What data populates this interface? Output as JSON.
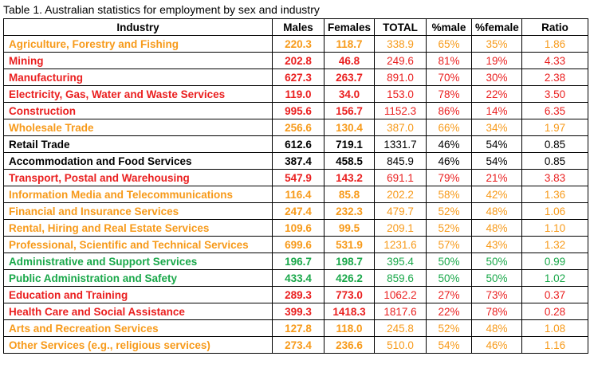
{
  "caption": "Table 1. Australian statistics for employment by sex and industry",
  "headers": {
    "industry": "Industry",
    "males": "Males",
    "females": "Females",
    "total": "TOTAL",
    "pct_male": "%male",
    "pct_female": "%female",
    "ratio": "Ratio"
  },
  "colors": {
    "orange": "#f79a1a",
    "red": "#ea1f1f",
    "black": "#000000",
    "green": "#1aa84a"
  },
  "rows": [
    {
      "industry": "Agriculture, Forestry and Fishing",
      "males": "220.3",
      "females": "118.7",
      "total": "338.9",
      "pct_male": "65%",
      "pct_female": "35%",
      "ratio": "1.86",
      "color": "orange"
    },
    {
      "industry": "Mining",
      "males": "202.8",
      "females": "46.8",
      "total": "249.6",
      "pct_male": "81%",
      "pct_female": "19%",
      "ratio": "4.33",
      "color": "red"
    },
    {
      "industry": "Manufacturing",
      "males": "627.3",
      "females": "263.7",
      "total": "891.0",
      "pct_male": "70%",
      "pct_female": "30%",
      "ratio": "2.38",
      "color": "red"
    },
    {
      "industry": "Electricity, Gas, Water and Waste Services",
      "males": "119.0",
      "females": "34.0",
      "total": "153.0",
      "pct_male": "78%",
      "pct_female": "22%",
      "ratio": "3.50",
      "color": "red"
    },
    {
      "industry": "Construction",
      "males": "995.6",
      "females": "156.7",
      "total": "1152.3",
      "pct_male": "86%",
      "pct_female": "14%",
      "ratio": "6.35",
      "color": "red"
    },
    {
      "industry": "Wholesale Trade",
      "males": "256.6",
      "females": "130.4",
      "total": "387.0",
      "pct_male": "66%",
      "pct_female": "34%",
      "ratio": "1.97",
      "color": "orange"
    },
    {
      "industry": "Retail Trade",
      "males": "612.6",
      "females": "719.1",
      "total": "1331.7",
      "pct_male": "46%",
      "pct_female": "54%",
      "ratio": "0.85",
      "color": "black"
    },
    {
      "industry": " Accommodation and Food Services",
      "males": "387.4",
      "females": "458.5",
      "total": "845.9",
      "pct_male": "46%",
      "pct_female": "54%",
      "ratio": "0.85",
      "color": "black"
    },
    {
      "industry": "Transport, Postal and Warehousing",
      "males": "547.9",
      "females": "143.2",
      "total": "691.1",
      "pct_male": "79%",
      "pct_female": "21%",
      "ratio": "3.83",
      "color": "red"
    },
    {
      "industry": "Information Media and Telecommunications",
      "males": "116.4",
      "females": "85.8",
      "total": "202.2",
      "pct_male": "58%",
      "pct_female": "42%",
      "ratio": "1.36",
      "color": "orange"
    },
    {
      "industry": "Financial and Insurance Services",
      "males": "247.4",
      "females": "232.3",
      "total": "479.7",
      "pct_male": "52%",
      "pct_female": "48%",
      "ratio": "1.06",
      "color": "orange"
    },
    {
      "industry": "Rental, Hiring and Real Estate Services",
      "males": "109.6",
      "females": "99.5",
      "total": "209.1",
      "pct_male": "52%",
      "pct_female": "48%",
      "ratio": "1.10",
      "color": "orange"
    },
    {
      "industry": "Professional, Scientific and Technical Services",
      "males": "699.6",
      "females": "531.9",
      "total": "1231.6",
      "pct_male": "57%",
      "pct_female": "43%",
      "ratio": "1.32",
      "color": "orange"
    },
    {
      "industry": "Administrative and Support Services",
      "males": "196.7",
      "females": "198.7",
      "total": "395.4",
      "pct_male": "50%",
      "pct_female": "50%",
      "ratio": "0.99",
      "color": "green"
    },
    {
      "industry": "Public Administration and Safety",
      "males": "433.4",
      "females": "426.2",
      "total": "859.6",
      "pct_male": "50%",
      "pct_female": "50%",
      "ratio": "1.02",
      "color": "green"
    },
    {
      "industry": "Education and Training",
      "males": "289.3",
      "females": "773.0",
      "total": "1062.2",
      "pct_male": "27%",
      "pct_female": "73%",
      "ratio": "0.37",
      "color": "red"
    },
    {
      "industry": "Health Care and Social Assistance",
      "males": "399.3",
      "females": "1418.3",
      "total": "1817.6",
      "pct_male": "22%",
      "pct_female": "78%",
      "ratio": "0.28",
      "color": "red"
    },
    {
      "industry": "Arts and Recreation Services",
      "males": "127.8",
      "females": "118.0",
      "total": "245.8",
      "pct_male": "52%",
      "pct_female": "48%",
      "ratio": "1.08",
      "color": "orange"
    },
    {
      "industry": "Other Services (e.g., religious services)",
      "males": "273.4",
      "females": "236.6",
      "total": "510.0",
      "pct_male": "54%",
      "pct_female": "46%",
      "ratio": "1.16",
      "color": "orange"
    }
  ]
}
